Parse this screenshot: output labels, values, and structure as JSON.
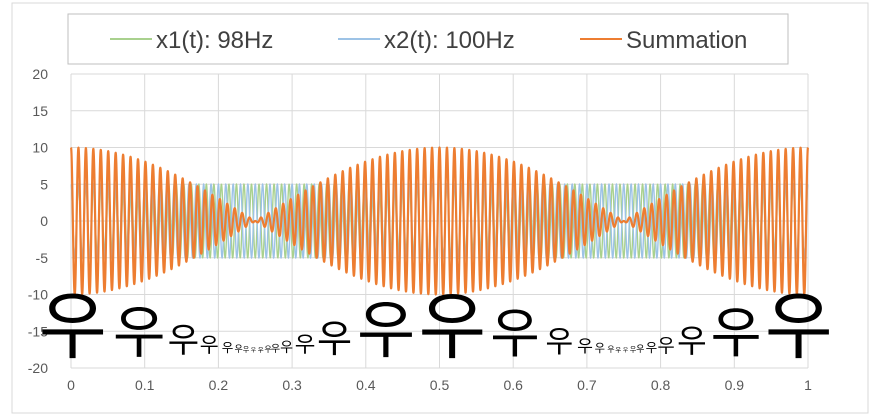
{
  "chart_data": {
    "type": "line",
    "title": "",
    "xlabel": "",
    "ylabel": "",
    "xlim": [
      0,
      1
    ],
    "ylim": [
      -20,
      20
    ],
    "x_ticks": [
      "0",
      "0.1",
      "0.2",
      "0.3",
      "0.4",
      "0.5",
      "0.6",
      "0.7",
      "0.8",
      "0.9",
      "1"
    ],
    "y_ticks": [
      "20",
      "15",
      "10",
      "5",
      "0",
      "-5",
      "-10",
      "-15",
      "-20"
    ],
    "grid": true,
    "legend_position": "top",
    "series": [
      {
        "name": "x1(t): 98Hz",
        "color": "#a9d18e",
        "frequency_hz": 98,
        "amplitude": 5
      },
      {
        "name": "x2(t): 100Hz",
        "color": "#9dc3e6",
        "frequency_hz": 100,
        "amplitude": 5
      },
      {
        "name": "Summation",
        "color": "#ed7d31",
        "amplitude": 10
      }
    ]
  },
  "overlay": {
    "glyph": "우",
    "color": "#000000"
  }
}
